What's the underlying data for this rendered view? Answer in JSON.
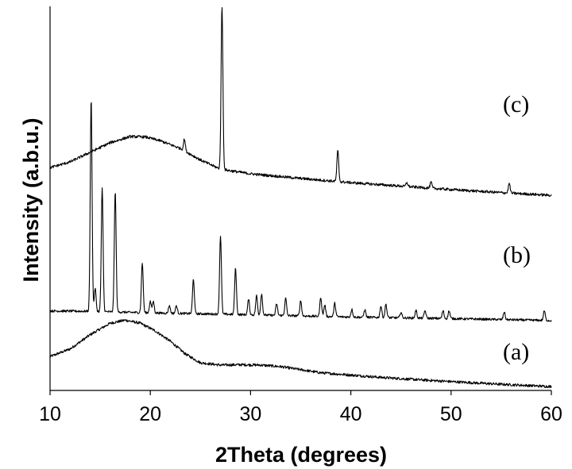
{
  "chart_data": {
    "type": "line",
    "xlabel": "2Theta (degrees)",
    "ylabel": "Intensity (a.b.u.)",
    "xlim": [
      10,
      60
    ],
    "x_ticks": [
      "10",
      "20",
      "30",
      "40",
      "50",
      "60"
    ],
    "y_ticks_labeled": false,
    "grid": false,
    "series": [
      {
        "name": "(a)",
        "kind": "amorphous",
        "baseline": [
          [
            10,
            0.088
          ],
          [
            12,
            0.108
          ],
          [
            14,
            0.145
          ],
          [
            16,
            0.175
          ],
          [
            17.5,
            0.183
          ],
          [
            19,
            0.175
          ],
          [
            20.5,
            0.155
          ],
          [
            22,
            0.128
          ],
          [
            23.5,
            0.095
          ],
          [
            25,
            0.072
          ],
          [
            27,
            0.066
          ],
          [
            29,
            0.067
          ],
          [
            31,
            0.066
          ],
          [
            33,
            0.062
          ],
          [
            35,
            0.054
          ],
          [
            37,
            0.046
          ],
          [
            40,
            0.04
          ],
          [
            43,
            0.034
          ],
          [
            46,
            0.029
          ],
          [
            50,
            0.023
          ],
          [
            55,
            0.016
          ],
          [
            60,
            0.01
          ]
        ],
        "peaks": []
      },
      {
        "name": "(b)",
        "kind": "crystalline",
        "baseline": [
          [
            10,
            0.207
          ],
          [
            14,
            0.206
          ],
          [
            20,
            0.202
          ],
          [
            30,
            0.197
          ],
          [
            40,
            0.191
          ],
          [
            50,
            0.187
          ],
          [
            60,
            0.182
          ]
        ],
        "peaks": [
          [
            14.1,
            0.555
          ],
          [
            14.5,
            0.06
          ],
          [
            15.2,
            0.32
          ],
          [
            16.5,
            0.315
          ],
          [
            19.2,
            0.13
          ],
          [
            20.0,
            0.03
          ],
          [
            20.3,
            0.03
          ],
          [
            21.9,
            0.02
          ],
          [
            22.6,
            0.02
          ],
          [
            24.3,
            0.09
          ],
          [
            27.0,
            0.205
          ],
          [
            28.5,
            0.12
          ],
          [
            29.8,
            0.04
          ],
          [
            30.6,
            0.05
          ],
          [
            31.1,
            0.055
          ],
          [
            32.6,
            0.03
          ],
          [
            33.5,
            0.045
          ],
          [
            35.0,
            0.04
          ],
          [
            37.0,
            0.05
          ],
          [
            37.4,
            0.03
          ],
          [
            38.4,
            0.035
          ],
          [
            40.1,
            0.02
          ],
          [
            41.4,
            0.02
          ],
          [
            43.0,
            0.03
          ],
          [
            43.5,
            0.035
          ],
          [
            45.0,
            0.015
          ],
          [
            46.5,
            0.02
          ],
          [
            47.4,
            0.02
          ],
          [
            49.2,
            0.02
          ],
          [
            49.8,
            0.02
          ],
          [
            55.3,
            0.02
          ],
          [
            59.3,
            0.025
          ]
        ]
      },
      {
        "name": "(c)",
        "kind": "semi-crystalline",
        "baseline": [
          [
            10,
            0.58
          ],
          [
            12,
            0.595
          ],
          [
            14,
            0.62
          ],
          [
            16,
            0.645
          ],
          [
            18,
            0.661
          ],
          [
            19.5,
            0.66
          ],
          [
            21,
            0.65
          ],
          [
            23,
            0.63
          ],
          [
            25,
            0.6
          ],
          [
            27,
            0.576
          ],
          [
            30,
            0.564
          ],
          [
            35,
            0.552
          ],
          [
            40,
            0.541
          ],
          [
            45,
            0.532
          ],
          [
            50,
            0.523
          ],
          [
            55,
            0.515
          ],
          [
            60,
            0.508
          ]
        ],
        "peaks": [
          [
            23.4,
            0.03
          ],
          [
            27.15,
            0.425
          ],
          [
            38.7,
            0.08
          ],
          [
            45.6,
            0.01
          ],
          [
            48.0,
            0.015
          ],
          [
            55.8,
            0.025
          ]
        ]
      }
    ]
  }
}
